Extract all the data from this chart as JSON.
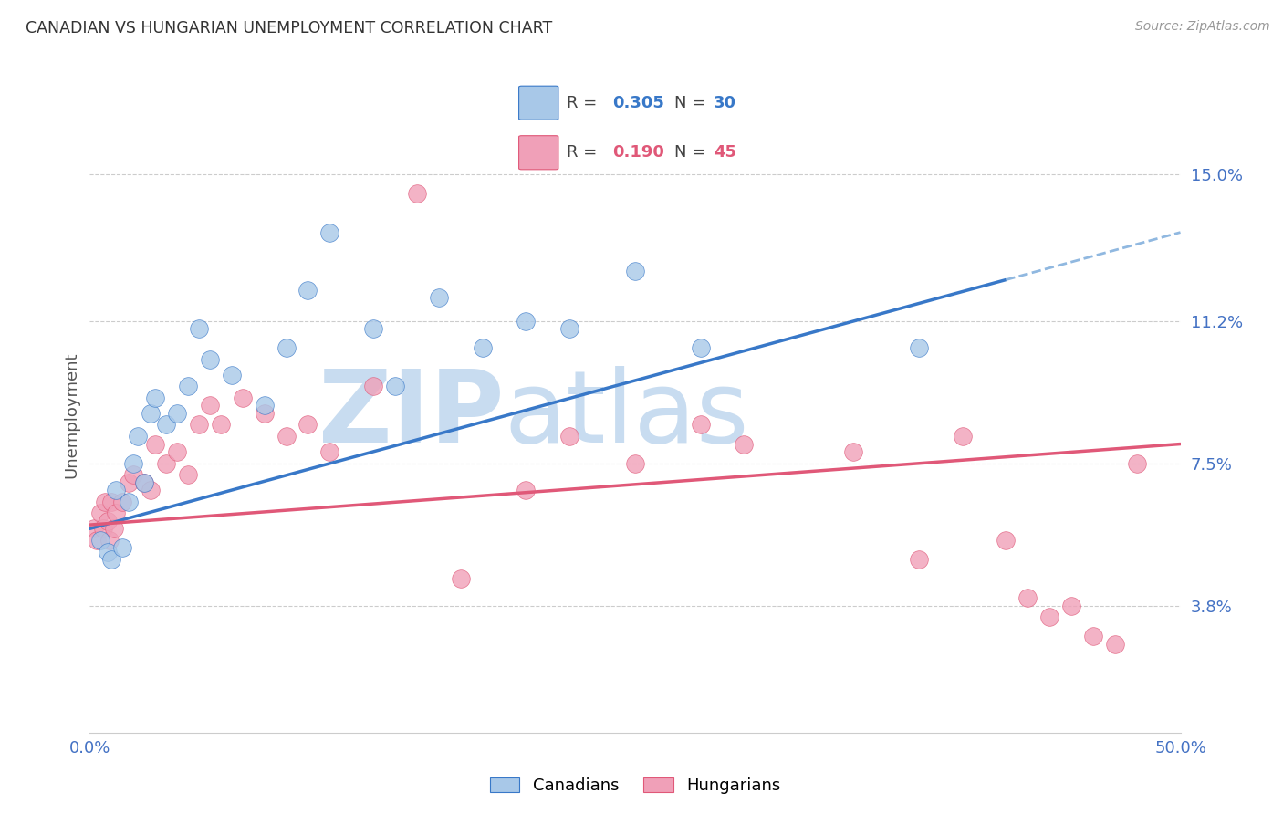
{
  "title": "CANADIAN VS HUNGARIAN UNEMPLOYMENT CORRELATION CHART",
  "source": "Source: ZipAtlas.com",
  "ylabel": "Unemployment",
  "yticks": [
    3.8,
    7.5,
    11.2,
    15.0
  ],
  "ytick_labels": [
    "3.8%",
    "7.5%",
    "11.2%",
    "15.0%"
  ],
  "xmin": 0.0,
  "xmax": 50.0,
  "ymin": 0.5,
  "ymax": 17.0,
  "canadian_R": 0.305,
  "canadian_N": 30,
  "hungarian_R": 0.19,
  "hungarian_N": 45,
  "canadian_color": "#A8C8E8",
  "canadian_line_color": "#3878C8",
  "hungarian_color": "#F0A0B8",
  "hungarian_line_color": "#E05878",
  "dashed_line_color": "#90B8E0",
  "background_color": "#FFFFFF",
  "watermark_color": "#C8DCF0",
  "blue_trend_x0": 0.0,
  "blue_trend_y0": 5.8,
  "blue_trend_x1": 50.0,
  "blue_trend_y1": 13.5,
  "blue_solid_end_x": 42.0,
  "pink_trend_x0": 0.0,
  "pink_trend_y0": 5.9,
  "pink_trend_x1": 50.0,
  "pink_trend_y1": 8.0,
  "canadians_x": [
    0.5,
    0.8,
    1.0,
    1.2,
    1.5,
    1.8,
    2.0,
    2.2,
    2.5,
    2.8,
    3.0,
    3.5,
    4.0,
    4.5,
    5.0,
    5.5,
    6.5,
    8.0,
    9.0,
    10.0,
    11.0,
    13.0,
    14.0,
    16.0,
    18.0,
    20.0,
    22.0,
    25.0,
    28.0,
    38.0
  ],
  "canadians_y": [
    5.5,
    5.2,
    5.0,
    6.8,
    5.3,
    6.5,
    7.5,
    8.2,
    7.0,
    8.8,
    9.2,
    8.5,
    8.8,
    9.5,
    11.0,
    10.2,
    9.8,
    9.0,
    10.5,
    12.0,
    13.5,
    11.0,
    9.5,
    11.8,
    10.5,
    11.2,
    11.0,
    12.5,
    10.5,
    10.5
  ],
  "hungarians_x": [
    0.2,
    0.3,
    0.5,
    0.6,
    0.7,
    0.8,
    0.9,
    1.0,
    1.1,
    1.2,
    1.5,
    1.8,
    2.0,
    2.5,
    2.8,
    3.0,
    3.5,
    4.0,
    4.5,
    5.0,
    5.5,
    6.0,
    7.0,
    8.0,
    9.0,
    10.0,
    11.0,
    13.0,
    15.0,
    17.0,
    20.0,
    22.0,
    25.0,
    28.0,
    30.0,
    35.0,
    38.0,
    40.0,
    42.0,
    43.0,
    44.0,
    45.0,
    46.0,
    47.0,
    48.0
  ],
  "hungarians_y": [
    5.8,
    5.5,
    6.2,
    5.8,
    6.5,
    6.0,
    5.5,
    6.5,
    5.8,
    6.2,
    6.5,
    7.0,
    7.2,
    7.0,
    6.8,
    8.0,
    7.5,
    7.8,
    7.2,
    8.5,
    9.0,
    8.5,
    9.2,
    8.8,
    8.2,
    8.5,
    7.8,
    9.5,
    14.5,
    4.5,
    6.8,
    8.2,
    7.5,
    8.5,
    8.0,
    7.8,
    5.0,
    8.2,
    5.5,
    4.0,
    3.5,
    3.8,
    3.0,
    2.8,
    7.5
  ]
}
